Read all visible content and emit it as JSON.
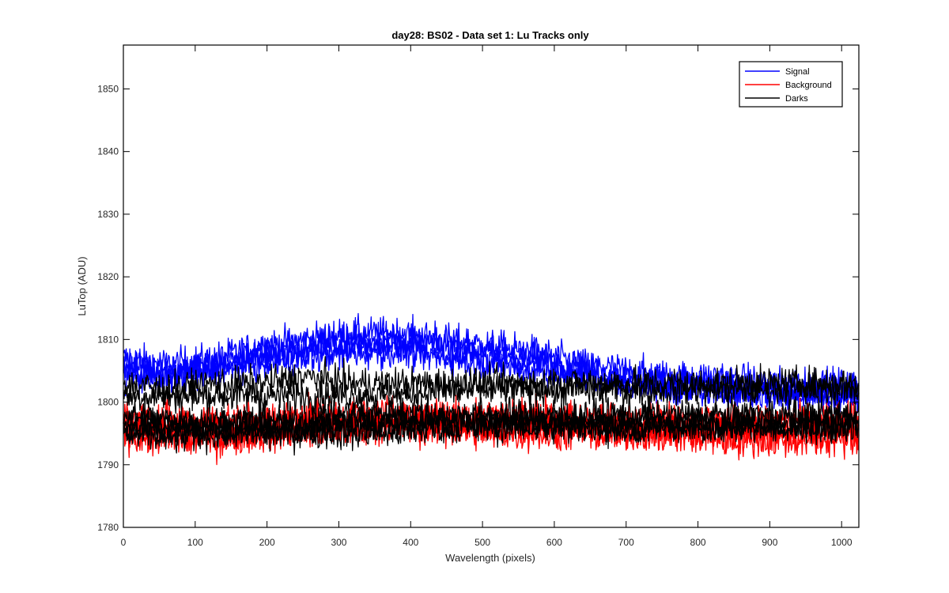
{
  "chart_data": {
    "type": "line",
    "title": "day28: BS02 - Data set 1: Lu Tracks only",
    "xlabel": "Wavelength (pixels)",
    "ylabel": "LuTop (ADU)",
    "xlim": [
      0,
      1024
    ],
    "ylim": [
      1780,
      1857
    ],
    "x_ticks": [
      0,
      100,
      200,
      300,
      400,
      500,
      600,
      700,
      800,
      900,
      1000
    ],
    "y_ticks": [
      1780,
      1790,
      1800,
      1810,
      1820,
      1830,
      1840,
      1850
    ],
    "grid": false,
    "legend_position": "top-right",
    "legend": [
      {
        "label": "Signal",
        "color": "#0000ff"
      },
      {
        "label": "Background",
        "color": "#ff0000"
      },
      {
        "label": "Darks",
        "color": "#000000"
      }
    ],
    "x_step": 64,
    "series": [
      {
        "group": "Signal",
        "color": "#0000ff",
        "noise": 1.3,
        "values": [
          1807,
          1806,
          1807,
          1809,
          1810,
          1811,
          1811,
          1810,
          1809,
          1808,
          1806,
          1805,
          1804,
          1804,
          1803,
          1803,
          1803
        ]
      },
      {
        "group": "Signal",
        "color": "#0000ff",
        "noise": 1.3,
        "values": [
          1806,
          1805,
          1806,
          1808,
          1809,
          1810,
          1810,
          1809,
          1808,
          1807,
          1805,
          1804,
          1803,
          1803,
          1802,
          1802,
          1802
        ]
      },
      {
        "group": "Signal",
        "color": "#0000ff",
        "noise": 1.3,
        "values": [
          1805,
          1804,
          1805,
          1807,
          1808,
          1809,
          1809,
          1808,
          1807,
          1806,
          1805,
          1803,
          1803,
          1802,
          1802,
          1801,
          1801
        ]
      },
      {
        "group": "Signal",
        "color": "#0000ff",
        "noise": 1.3,
        "values": [
          1804,
          1804,
          1805,
          1806,
          1807,
          1808,
          1808,
          1807,
          1806,
          1805,
          1804,
          1803,
          1802,
          1802,
          1801,
          1801,
          1801
        ]
      },
      {
        "group": "Background",
        "color": "#ff0000",
        "noise": 1.5,
        "values": [
          1797,
          1796,
          1796,
          1796,
          1797,
          1797,
          1797,
          1797,
          1797,
          1797,
          1797,
          1796,
          1796,
          1796,
          1796,
          1796,
          1796
        ]
      },
      {
        "group": "Background",
        "color": "#ff0000",
        "noise": 1.5,
        "values": [
          1796,
          1795,
          1795,
          1795,
          1796,
          1796,
          1797,
          1796,
          1796,
          1796,
          1796,
          1795,
          1795,
          1795,
          1795,
          1795,
          1795
        ]
      },
      {
        "group": "Background",
        "color": "#ff0000",
        "noise": 1.5,
        "values": [
          1798,
          1797,
          1797,
          1797,
          1798,
          1798,
          1798,
          1798,
          1798,
          1798,
          1797,
          1797,
          1797,
          1797,
          1797,
          1797,
          1797
        ]
      },
      {
        "group": "Background",
        "color": "#ff0000",
        "noise": 1.5,
        "values": [
          1795,
          1794,
          1794,
          1795,
          1795,
          1796,
          1796,
          1796,
          1795,
          1795,
          1795,
          1795,
          1795,
          1794,
          1794,
          1794,
          1794
        ]
      },
      {
        "group": "Darks",
        "color": "#000000",
        "noise": 1.3,
        "values": [
          1803,
          1802,
          1803,
          1803,
          1804,
          1803,
          1803,
          1803,
          1803,
          1803,
          1803,
          1803,
          1803,
          1803,
          1803,
          1803,
          1803
        ]
      },
      {
        "group": "Darks",
        "color": "#000000",
        "noise": 1.3,
        "values": [
          1801,
          1801,
          1801,
          1801,
          1801,
          1801,
          1801,
          1802,
          1802,
          1802,
          1802,
          1802,
          1802,
          1802,
          1802,
          1802,
          1802
        ]
      },
      {
        "group": "Darks",
        "color": "#000000",
        "noise": 1.3,
        "values": [
          1798,
          1797,
          1797,
          1797,
          1797,
          1798,
          1798,
          1798,
          1798,
          1798,
          1798,
          1798,
          1798,
          1798,
          1798,
          1798,
          1798
        ]
      },
      {
        "group": "Darks",
        "color": "#000000",
        "noise": 1.3,
        "values": [
          1796,
          1796,
          1796,
          1796,
          1796,
          1796,
          1797,
          1797,
          1797,
          1797,
          1797,
          1797,
          1797,
          1797,
          1797,
          1797,
          1797
        ]
      },
      {
        "group": "Darks",
        "color": "#000000",
        "noise": 1.3,
        "values": [
          1795,
          1794,
          1795,
          1795,
          1795,
          1795,
          1795,
          1796,
          1796,
          1796,
          1796,
          1796,
          1796,
          1796,
          1796,
          1796,
          1796
        ]
      },
      {
        "group": "Darks",
        "color": "#000000",
        "noise": 1.3,
        "values": [
          1797,
          1796,
          1796,
          1796,
          1796,
          1797,
          1797,
          1797,
          1797,
          1797,
          1796,
          1796,
          1796,
          1796,
          1796,
          1796,
          1797
        ]
      }
    ]
  }
}
